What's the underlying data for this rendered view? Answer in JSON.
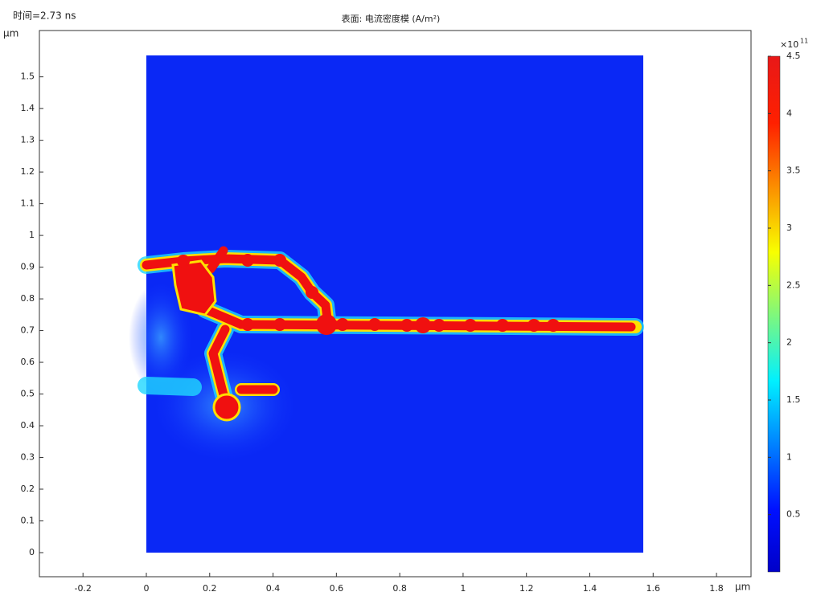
{
  "chart_data": {
    "type": "surface",
    "title": "表面: 电流密度模 (A/m²)",
    "time_label": "时间=2.73 ns",
    "x_unit": "μm",
    "y_unit": "μm",
    "xlim": [
      -0.3376,
      1.909
    ],
    "ylim": [
      -0.076,
      1.646
    ],
    "xticks": [
      -0.2,
      0,
      0.2,
      0.4,
      0.6,
      0.8,
      1,
      1.2,
      1.4,
      1.6,
      1.8
    ],
    "yticks": [
      0,
      0.1,
      0.2,
      0.3,
      0.4,
      0.5,
      0.6,
      0.7,
      0.8,
      0.9,
      1,
      1.1,
      1.2,
      1.3,
      1.4,
      1.5
    ],
    "colormap": "jet",
    "clim": [
      0,
      4.5
    ],
    "cticks": [
      0.5,
      1,
      1.5,
      2,
      2.5,
      3,
      3.5,
      4,
      4.5
    ],
    "colorbar_multiplier": "×10",
    "colorbar_exponent": "11"
  }
}
